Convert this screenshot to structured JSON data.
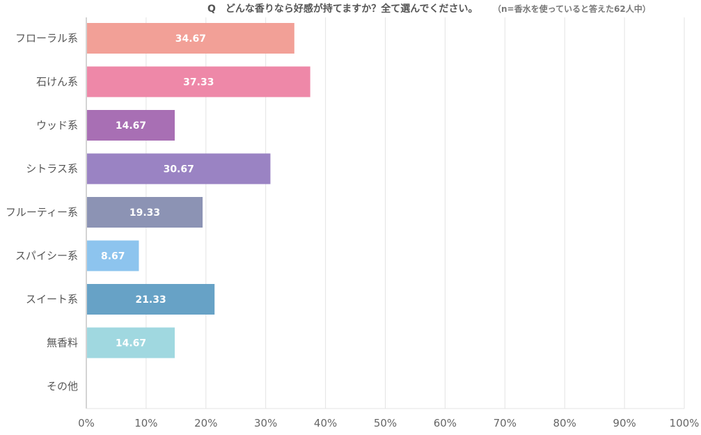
{
  "chart_data": {
    "type": "bar",
    "orientation": "horizontal",
    "title": "Q　どんな香りなら好感が持てますか？全て選んでください。",
    "subtitle": "（n=香水を使っていると答えた62人中）",
    "categories": [
      "フローラル系",
      "石けん系",
      "ウッド系",
      "シトラス系",
      "フルーティー系",
      "スパイシー系",
      "スイート系",
      "無香料",
      "その他"
    ],
    "values": [
      34.67,
      37.33,
      14.67,
      30.67,
      19.33,
      8.67,
      21.33,
      14.67,
      0
    ],
    "value_labels": [
      "34.67",
      "37.33",
      "14.67",
      "30.67",
      "19.33",
      "8.67",
      "21.33",
      "14.67",
      ""
    ],
    "colors": [
      "#f2a097",
      "#ee88a8",
      "#a86fb4",
      "#9a83c3",
      "#8c93b4",
      "#8dc4ee",
      "#67a2c6",
      "#a0d8e0",
      "#cccccc"
    ],
    "xlim": [
      0,
      100
    ],
    "xticks": [
      0,
      10,
      20,
      30,
      40,
      50,
      60,
      70,
      80,
      90,
      100
    ],
    "xtick_labels": [
      "0%",
      "10%",
      "20%",
      "30%",
      "40%",
      "50%",
      "60%",
      "70%",
      "80%",
      "90%",
      "100%"
    ],
    "grid": true,
    "legend": "none",
    "gridline_color": "#e3e3e3",
    "axis_color": "#aaaaaa"
  }
}
